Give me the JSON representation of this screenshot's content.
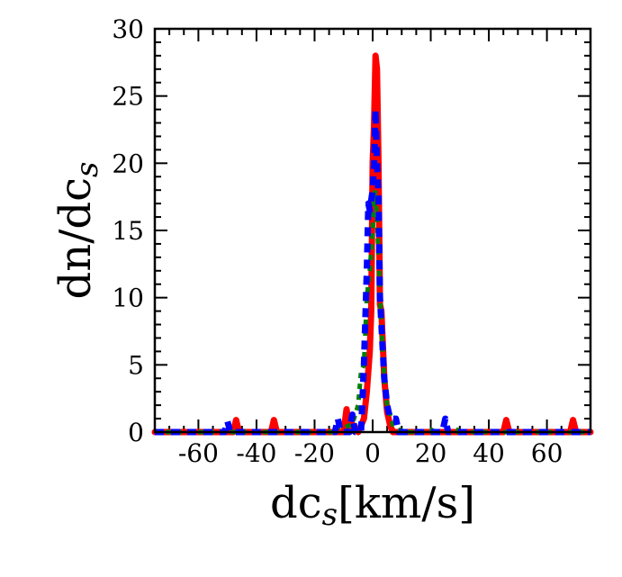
{
  "chart_data": {
    "type": "line",
    "xlabel": "dc_s[km/s]",
    "ylabel": "dn/dc_s",
    "xlim": [
      -75,
      75
    ],
    "ylim": [
      0,
      30
    ],
    "x_ticks": [
      -60,
      -40,
      -20,
      0,
      20,
      40,
      60
    ],
    "y_ticks": [
      0,
      5,
      10,
      15,
      20,
      25,
      30
    ],
    "x_ticklabels": [
      "-60",
      "-40",
      "-20",
      "0",
      "20",
      "40",
      "60"
    ],
    "y_ticklabels": [
      "0",
      "5",
      "10",
      "15",
      "20",
      "25",
      "30"
    ],
    "grid": false,
    "series": [
      {
        "style": "solid",
        "color": "#ff0000",
        "points": [
          [
            -75,
            0
          ],
          [
            -48,
            0
          ],
          [
            -47,
            0.9
          ],
          [
            -46,
            0
          ],
          [
            -35,
            0
          ],
          [
            -34,
            0.9
          ],
          [
            -33,
            0
          ],
          [
            -10,
            0
          ],
          [
            -9,
            1.7
          ],
          [
            -8,
            0
          ],
          [
            -7,
            0.6
          ],
          [
            -5,
            0
          ],
          [
            -4,
            0.5
          ],
          [
            -3,
            1.0
          ],
          [
            -2,
            3.0
          ],
          [
            -1,
            6.0
          ],
          [
            -0.5,
            9.0
          ],
          [
            0,
            20.0
          ],
          [
            0.5,
            23.0
          ],
          [
            1,
            28.0
          ],
          [
            1.5,
            27.0
          ],
          [
            2,
            20.0
          ],
          [
            2.5,
            9.5
          ],
          [
            3,
            9.0
          ],
          [
            4,
            4.0
          ],
          [
            5,
            1.5
          ],
          [
            6,
            0.5
          ],
          [
            7,
            0
          ],
          [
            45,
            0
          ],
          [
            46,
            0.9
          ],
          [
            47,
            0
          ],
          [
            68,
            0
          ],
          [
            69,
            0.9
          ],
          [
            70,
            0
          ],
          [
            75,
            0
          ]
        ]
      },
      {
        "style": "dashed",
        "color": "#0000ff",
        "points": [
          [
            -75,
            0
          ],
          [
            -51,
            0
          ],
          [
            -50,
            0.8
          ],
          [
            -49,
            0
          ],
          [
            -13,
            0
          ],
          [
            -12,
            1.0
          ],
          [
            -11,
            0
          ],
          [
            -8,
            0
          ],
          [
            -7,
            1.3
          ],
          [
            -6,
            0
          ],
          [
            -4,
            0
          ],
          [
            -3,
            5.0
          ],
          [
            -2,
            12.0
          ],
          [
            -1.5,
            17.0
          ],
          [
            -1,
            16.5
          ],
          [
            0,
            18.0
          ],
          [
            0.5,
            20.0
          ],
          [
            1,
            24.0
          ],
          [
            1.5,
            20.0
          ],
          [
            2,
            17.5
          ],
          [
            2.5,
            10.0
          ],
          [
            3,
            8.0
          ],
          [
            4,
            4.0
          ],
          [
            5,
            2.0
          ],
          [
            6,
            1.0
          ],
          [
            8,
            1.0
          ],
          [
            9,
            0
          ],
          [
            24,
            0
          ],
          [
            25,
            1.0
          ],
          [
            26,
            0
          ],
          [
            75,
            0
          ]
        ]
      },
      {
        "style": "dotted",
        "color": "#008000",
        "points": [
          [
            -75,
            0
          ],
          [
            -13,
            0
          ],
          [
            -12,
            0.4
          ],
          [
            -10,
            0.3
          ],
          [
            -7,
            0.6
          ],
          [
            -5,
            2.0
          ],
          [
            -4,
            4.5
          ],
          [
            -3,
            5.0
          ],
          [
            -2,
            10.0
          ],
          [
            -1,
            12.0
          ],
          [
            0,
            15.0
          ],
          [
            0.5,
            17.5
          ],
          [
            1,
            18.0
          ],
          [
            1.5,
            16.0
          ],
          [
            2,
            13.0
          ],
          [
            3,
            8.0
          ],
          [
            4,
            4.0
          ],
          [
            5,
            2.0
          ],
          [
            6,
            1.3
          ],
          [
            7,
            0.5
          ],
          [
            9,
            0.2
          ],
          [
            11,
            0
          ],
          [
            20,
            0
          ],
          [
            21,
            0.4
          ],
          [
            22,
            0
          ],
          [
            29,
            0
          ],
          [
            30,
            0.4
          ],
          [
            31,
            0
          ],
          [
            75,
            0
          ]
        ]
      }
    ]
  }
}
